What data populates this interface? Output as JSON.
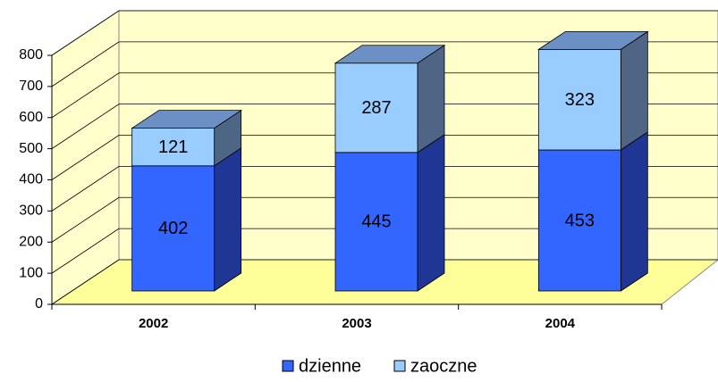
{
  "chart_data": {
    "type": "bar3d_stacked",
    "categories": [
      "2002",
      "2003",
      "2004"
    ],
    "series": [
      {
        "name": "dzienne",
        "color": "#3366ff",
        "values": [
          402,
          445,
          453
        ]
      },
      {
        "name": "zaoczne",
        "color": "#99ccff",
        "values": [
          121,
          287,
          323
        ]
      }
    ],
    "ylim": [
      0,
      800
    ],
    "yticks": [
      0,
      100,
      200,
      300,
      400,
      500,
      600,
      700,
      800
    ],
    "grid": true,
    "legend": "bottom"
  }
}
